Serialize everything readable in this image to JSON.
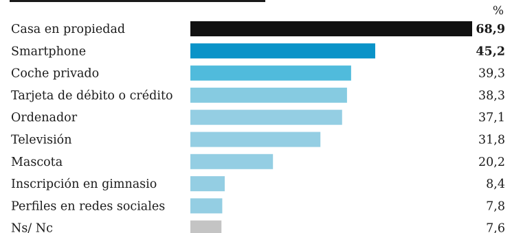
{
  "chart_data": {
    "type": "bar",
    "orientation": "horizontal",
    "unit": "%",
    "categories": [
      "Casa en propiedad",
      "Smartphone",
      "Coche privado",
      "Tarjeta de débito o crédito",
      "Ordenador",
      "Televisión",
      "Mascota",
      "Inscripción en gimnasio",
      "Perfiles en redes sociales",
      "Ns/ Nc"
    ],
    "values": [
      68.9,
      45.2,
      39.3,
      38.3,
      37.1,
      31.8,
      20.2,
      8.4,
      7.8,
      7.6
    ],
    "value_labels": [
      "68,9",
      "45,2",
      "39,3",
      "38,3",
      "37,1",
      "31,8",
      "20,2",
      "8,4",
      "7,8",
      "7,6"
    ],
    "bold_values": [
      true,
      true,
      false,
      false,
      false,
      false,
      false,
      false,
      false,
      false
    ],
    "colors": [
      "#111111",
      "#0a93c8",
      "#50bbdc",
      "#86cbe1",
      "#94cee3",
      "#94cee3",
      "#94cee3",
      "#94cee3",
      "#94cee3",
      "#c4c4c4"
    ],
    "xlim": [
      0,
      68.9
    ],
    "grid": false,
    "legend": "none"
  }
}
